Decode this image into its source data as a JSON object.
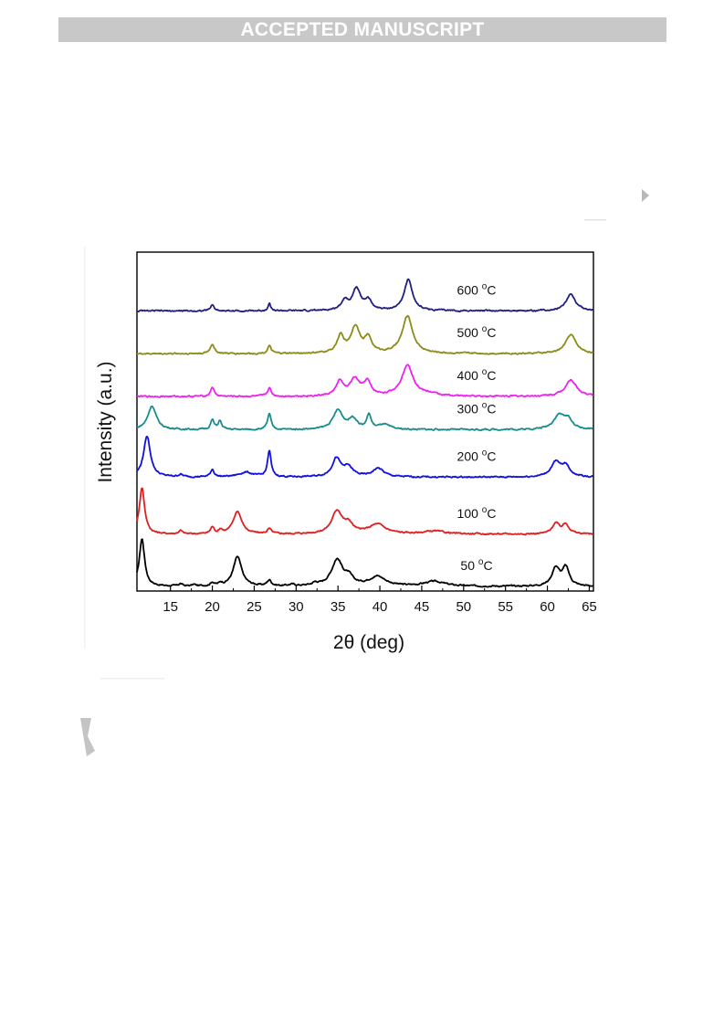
{
  "header": {
    "banner": "ACCEPTED MANUSCRIPT"
  },
  "chart_data": {
    "type": "line",
    "xlabel": "2θ (deg)",
    "ylabel": "Intensity (a.u.)",
    "xlim": [
      11,
      65.5
    ],
    "xticks": [
      15,
      20,
      25,
      30,
      35,
      40,
      45,
      50,
      55,
      60,
      65
    ],
    "yticks_shown": false,
    "grid": false,
    "legend": "inline labels right of each trace",
    "y_units": "arbitrary, stacked traces (0 = trace baseline, 1 = tallest peak of 50 °C trace)",
    "series": [
      {
        "name": "50 °C",
        "color": "#000000",
        "offset": 0.0,
        "label": {
          "value": "50",
          "unit": "C",
          "deg": "o"
        },
        "peaks": [
          [
            11.6,
            1.0,
            0.38
          ],
          [
            16.2,
            0.05,
            0.25
          ],
          [
            17.8,
            0.03,
            0.25
          ],
          [
            20.0,
            0.07,
            0.25
          ],
          [
            21.0,
            0.05,
            0.25
          ],
          [
            23.0,
            0.62,
            0.6
          ],
          [
            26.8,
            0.12,
            0.3
          ],
          [
            29.5,
            0.03,
            0.4
          ],
          [
            32.3,
            0.05,
            0.4
          ],
          [
            34.9,
            0.55,
            0.8
          ],
          [
            36.3,
            0.15,
            0.6
          ],
          [
            39.7,
            0.2,
            1.2
          ],
          [
            46.5,
            0.1,
            1.5
          ],
          [
            61.0,
            0.38,
            0.55
          ],
          [
            62.2,
            0.38,
            0.5
          ]
        ]
      },
      {
        "name": "100 °C",
        "color": "#e02020",
        "offset": 1.1,
        "label": {
          "value": "100",
          "unit": "C",
          "deg": "o"
        },
        "peaks": [
          [
            11.6,
            0.98,
            0.38
          ],
          [
            16.2,
            0.07,
            0.25
          ],
          [
            20.0,
            0.14,
            0.25
          ],
          [
            21.0,
            0.08,
            0.25
          ],
          [
            23.0,
            0.48,
            0.6
          ],
          [
            26.8,
            0.1,
            0.3
          ],
          [
            34.9,
            0.48,
            0.75
          ],
          [
            36.3,
            0.18,
            0.6
          ],
          [
            39.7,
            0.2,
            1.2
          ],
          [
            46.5,
            0.06,
            1.5
          ],
          [
            61.0,
            0.22,
            0.5
          ],
          [
            62.2,
            0.2,
            0.5
          ]
        ]
      },
      {
        "name": "200 °C",
        "color": "#1010e0",
        "offset": 2.3,
        "label": {
          "value": "200",
          "unit": "C",
          "deg": "o"
        },
        "peaks": [
          [
            12.2,
            0.86,
            0.5
          ],
          [
            16.2,
            0.05,
            0.3
          ],
          [
            20.0,
            0.16,
            0.25
          ],
          [
            24.0,
            0.1,
            1.0
          ],
          [
            26.8,
            0.55,
            0.25
          ],
          [
            34.8,
            0.38,
            0.6
          ],
          [
            36.2,
            0.2,
            0.7
          ],
          [
            39.8,
            0.18,
            0.8
          ],
          [
            61.0,
            0.3,
            0.7
          ],
          [
            62.2,
            0.22,
            0.6
          ]
        ]
      },
      {
        "name": "300 °C",
        "color": "#1a8c8c",
        "offset": 3.3,
        "label": {
          "value": "300",
          "unit": "C",
          "deg": "o"
        },
        "peaks": [
          [
            12.8,
            0.5,
            0.6
          ],
          [
            20.0,
            0.2,
            0.25
          ],
          [
            20.9,
            0.18,
            0.25
          ],
          [
            26.8,
            0.33,
            0.25
          ],
          [
            35.0,
            0.4,
            0.7
          ],
          [
            36.8,
            0.22,
            0.6
          ],
          [
            38.7,
            0.3,
            0.3
          ],
          [
            40.5,
            0.1,
            0.8
          ],
          [
            61.4,
            0.3,
            0.8
          ],
          [
            62.5,
            0.18,
            0.6
          ]
        ]
      },
      {
        "name": "400 °C",
        "color": "#f020f0",
        "offset": 4.0,
        "label": {
          "value": "400",
          "unit": "C",
          "deg": "o"
        },
        "peaks": [
          [
            20.0,
            0.2,
            0.25
          ],
          [
            26.8,
            0.18,
            0.25
          ],
          [
            35.2,
            0.3,
            0.5
          ],
          [
            37.0,
            0.35,
            0.7
          ],
          [
            38.5,
            0.28,
            0.5
          ],
          [
            43.3,
            0.65,
            0.85
          ],
          [
            46.0,
            0.04,
            1.0
          ],
          [
            62.8,
            0.35,
            0.8
          ]
        ]
      },
      {
        "name": "500 °C",
        "color": "#8c8c1a",
        "offset": 4.9,
        "label": {
          "value": "500",
          "unit": "C",
          "deg": "o"
        },
        "peaks": [
          [
            20.0,
            0.2,
            0.3
          ],
          [
            26.8,
            0.16,
            0.25
          ],
          [
            35.3,
            0.35,
            0.5
          ],
          [
            37.1,
            0.55,
            0.65
          ],
          [
            38.6,
            0.3,
            0.5
          ],
          [
            43.3,
            0.78,
            0.75
          ],
          [
            62.8,
            0.4,
            0.75
          ]
        ]
      },
      {
        "name": "600 °C",
        "color": "#202080",
        "offset": 5.8,
        "label": {
          "value": "600",
          "unit": "C",
          "deg": "o"
        },
        "peaks": [
          [
            20.0,
            0.13,
            0.25
          ],
          [
            26.8,
            0.16,
            0.2
          ],
          [
            35.8,
            0.2,
            0.5
          ],
          [
            37.2,
            0.45,
            0.6
          ],
          [
            38.6,
            0.2,
            0.5
          ],
          [
            43.4,
            0.65,
            0.6
          ],
          [
            62.8,
            0.35,
            0.7
          ]
        ]
      }
    ]
  }
}
